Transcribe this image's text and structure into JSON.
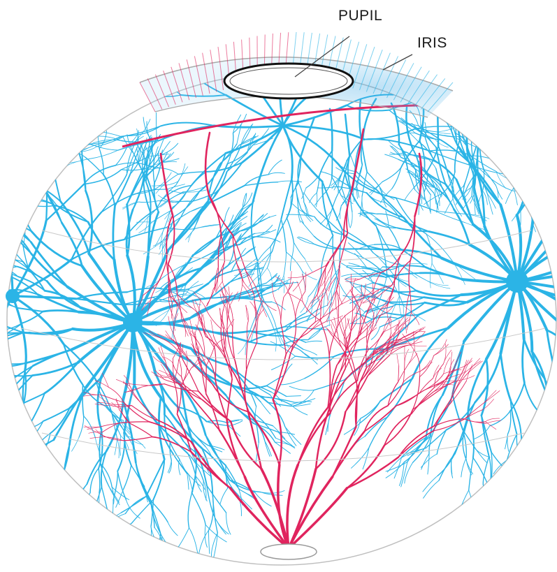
{
  "labels": {
    "pupil": "PUPIL",
    "iris": "IRIS"
  },
  "colors": {
    "artery": "#e0245e",
    "vein": "#2bb4e6",
    "outline": "#9a9a9a",
    "pupil_rim": "#111111",
    "background": "#ffffff"
  }
}
